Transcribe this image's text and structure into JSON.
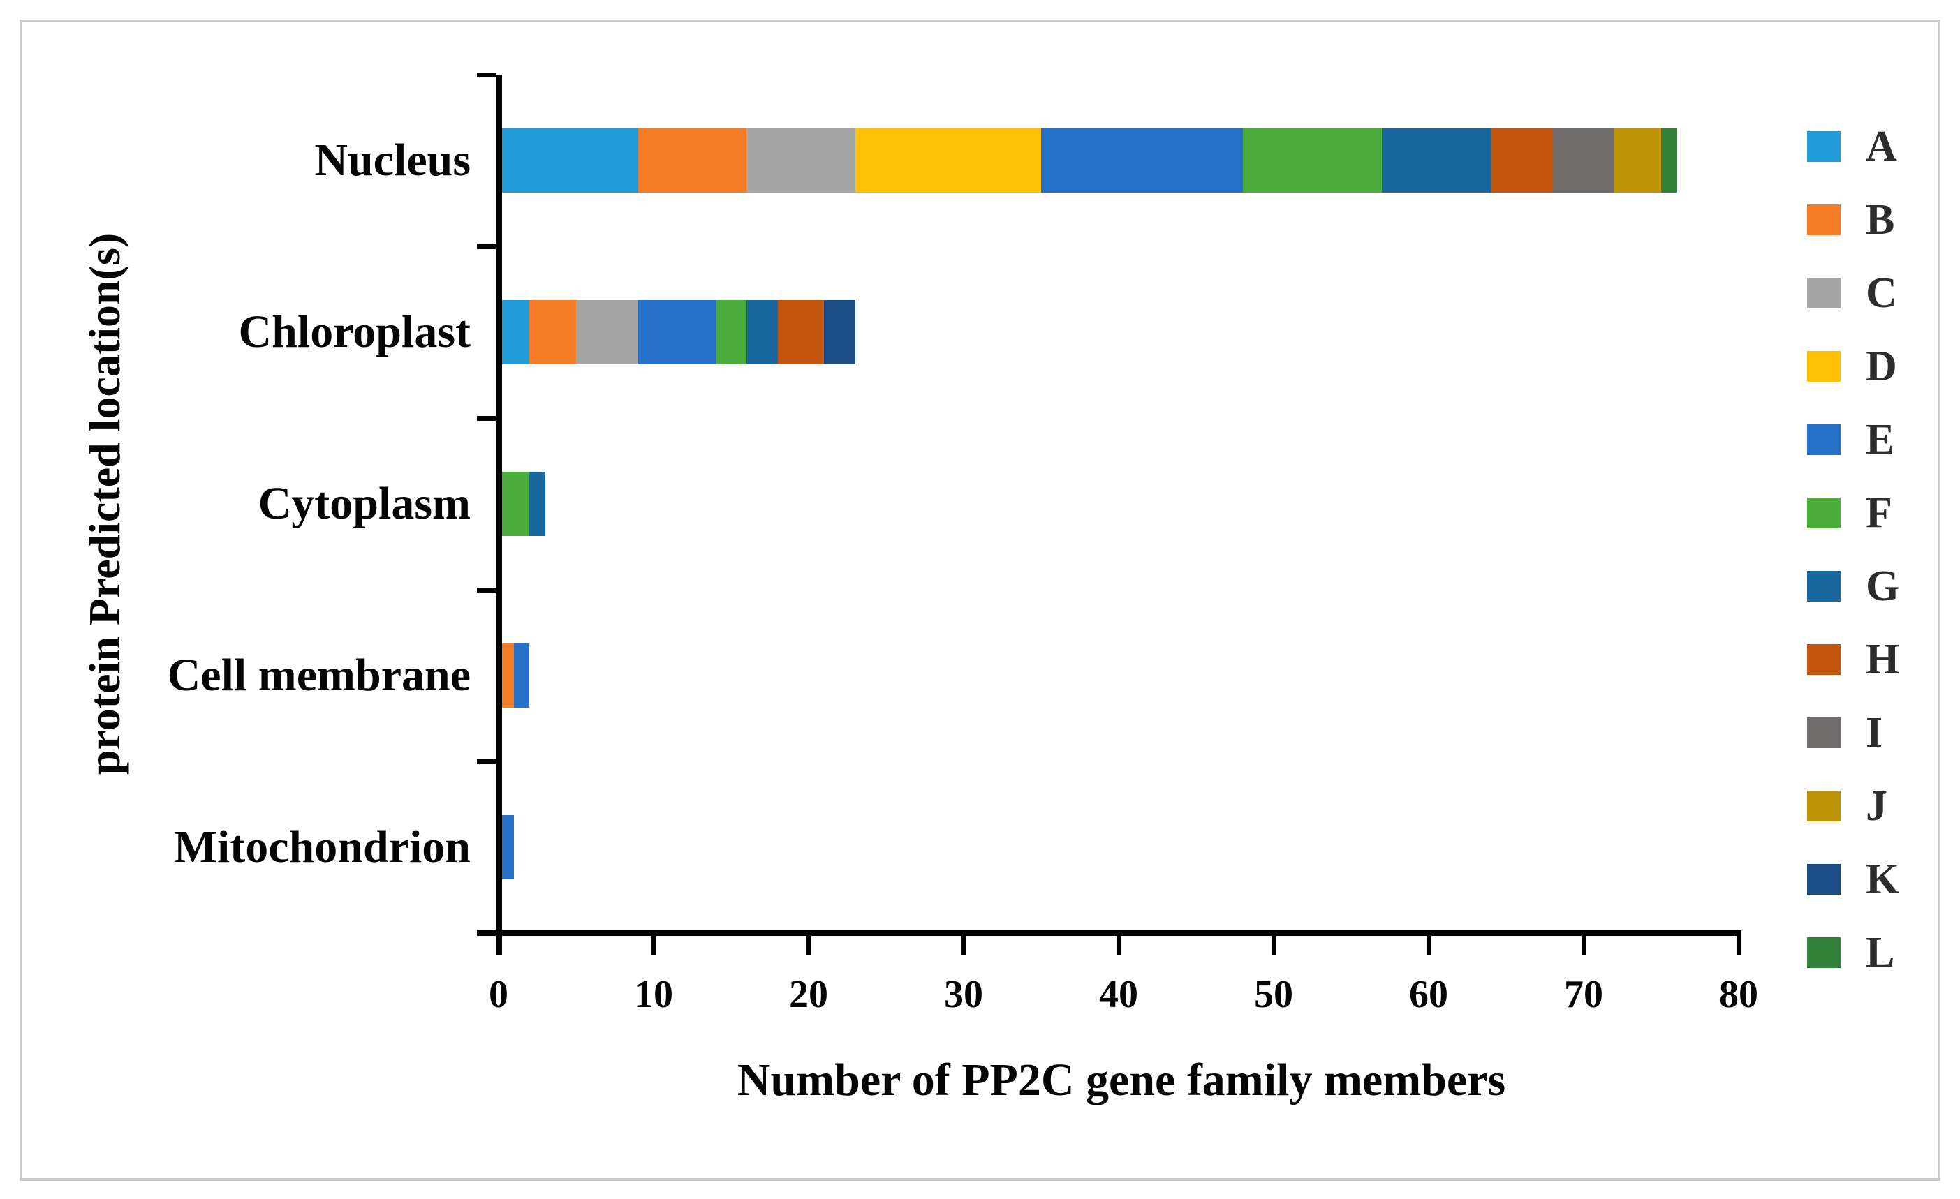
{
  "figure": {
    "background": "#ffffff",
    "border_color": "#c9c9c9",
    "axis_color": "#000000",
    "text_color": "#050505"
  },
  "chart_data": {
    "type": "bar",
    "orientation": "horizontal",
    "stacked": true,
    "title": "",
    "xlabel": "Number of PP2C gene family members",
    "ylabel": "protein Predicted location(s)",
    "categories": [
      "Nucleus",
      "Chloroplast",
      "Cytoplasm",
      "Cell membrane",
      "Mitochondrion"
    ],
    "totals": [
      76,
      23,
      3,
      2,
      1
    ],
    "xlim": [
      0,
      80
    ],
    "x_ticks": [
      0,
      10,
      20,
      30,
      40,
      50,
      60,
      70,
      80
    ],
    "grid": false,
    "legend_position": "right",
    "series": [
      {
        "name": "A",
        "color": "#219CD9",
        "values": [
          9,
          2,
          0,
          0,
          0
        ]
      },
      {
        "name": "B",
        "color": "#F67D28",
        "values": [
          7,
          3,
          0,
          1,
          0
        ]
      },
      {
        "name": "C",
        "color": "#A6A6A6",
        "values": [
          7,
          4,
          0,
          0,
          0
        ]
      },
      {
        "name": "D",
        "color": "#FFC003",
        "values": [
          12,
          0,
          0,
          0,
          0
        ]
      },
      {
        "name": "E",
        "color": "#2671C7",
        "values": [
          13,
          5,
          0,
          1,
          1
        ]
      },
      {
        "name": "F",
        "color": "#4CAC3C",
        "values": [
          9,
          2,
          2,
          0,
          0
        ]
      },
      {
        "name": "G",
        "color": "#19679C",
        "values": [
          7,
          2,
          1,
          0,
          0
        ]
      },
      {
        "name": "H",
        "color": "#C3550F",
        "values": [
          4,
          3,
          0,
          0,
          0
        ]
      },
      {
        "name": "I",
        "color": "#6F6B6B",
        "values": [
          4,
          0,
          0,
          0,
          0
        ]
      },
      {
        "name": "J",
        "color": "#BD9204",
        "values": [
          3,
          0,
          0,
          0,
          0
        ]
      },
      {
        "name": "K",
        "color": "#1D4D87",
        "values": [
          0,
          2,
          0,
          0,
          0
        ]
      },
      {
        "name": "L",
        "color": "#33803B",
        "values": [
          1,
          0,
          0,
          0,
          0
        ]
      }
    ]
  }
}
